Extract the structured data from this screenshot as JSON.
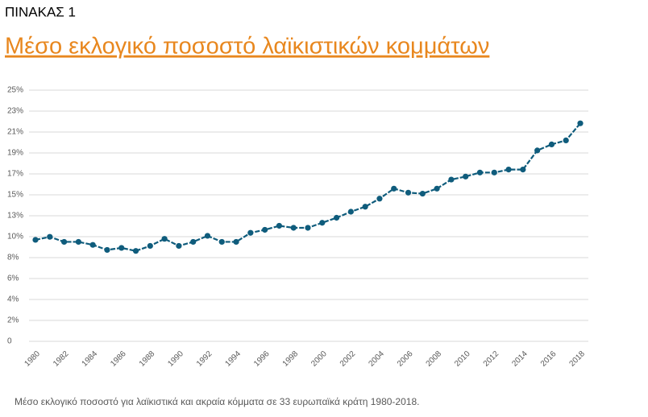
{
  "chart_data": {
    "type": "line",
    "label": "ΠΙΝΑΚΑΣ 1",
    "title": "Μέσο εκλογικό ποσοστό λαϊκιστικών κομμάτων",
    "caption": "Μέσο εκλογικό ποσοστό για λαϊκιστικά και ακραία κόμματα σε 33 ευρωπαϊκά κράτη 1980-2018.",
    "x": [
      1980,
      1981,
      1982,
      1983,
      1984,
      1985,
      1986,
      1987,
      1988,
      1989,
      1990,
      1991,
      1992,
      1993,
      1994,
      1995,
      1996,
      1997,
      1998,
      1999,
      2000,
      2001,
      2002,
      2003,
      2004,
      2005,
      2006,
      2007,
      2008,
      2009,
      2010,
      2011,
      2012,
      2013,
      2014,
      2015,
      2016,
      2017,
      2018
    ],
    "series": [
      {
        "color": "#0f5c7c",
        "values": [
          10.1,
          10.4,
          9.9,
          9.9,
          9.6,
          9.1,
          9.3,
          9.0,
          9.5,
          10.2,
          9.5,
          9.9,
          10.5,
          9.9,
          9.9,
          10.8,
          11.1,
          11.5,
          11.3,
          11.3,
          11.8,
          12.3,
          12.9,
          13.4,
          14.2,
          15.2,
          14.8,
          14.7,
          15.2,
          16.1,
          16.4,
          16.8,
          16.8,
          17.1,
          17.1,
          19.0,
          19.6,
          20.0,
          21.7
        ]
      }
    ],
    "xlim": [
      1980,
      2018
    ],
    "xticks": [
      1980,
      1982,
      1984,
      1986,
      1988,
      1990,
      1992,
      1994,
      1996,
      1998,
      2000,
      2002,
      2004,
      2006,
      2008,
      2010,
      2012,
      2014,
      2016,
      2018
    ],
    "ylim": [
      0,
      25
    ],
    "yticks": [
      0,
      {
        "value": 2.083,
        "label": "2%"
      },
      {
        "value": 4.167,
        "label": "4%"
      },
      {
        "value": 6.25,
        "label": "6%"
      },
      {
        "value": 8.333,
        "label": "8%"
      },
      {
        "value": 10.417,
        "label": "10%"
      },
      {
        "value": 12.5,
        "label": "13%"
      },
      {
        "value": 14.583,
        "label": "15%"
      },
      {
        "value": 16.667,
        "label": "17%"
      },
      {
        "value": 18.75,
        "label": "19%"
      },
      {
        "value": 20.833,
        "label": "21%"
      },
      {
        "value": 22.917,
        "label": "23%"
      },
      {
        "value": 25,
        "label": "25%"
      }
    ],
    "grid": true
  }
}
